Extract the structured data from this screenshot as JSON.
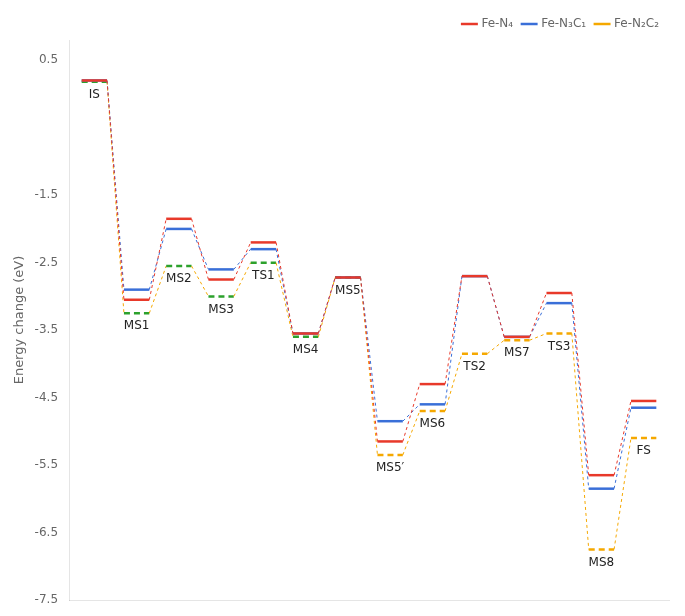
{
  "chart_data": {
    "type": "line",
    "categories": [
      "IS",
      "MS1",
      "MS2",
      "MS3",
      "TS1",
      "MS4",
      "MS5",
      "MS5′",
      "MS6",
      "TS2",
      "MS7",
      "TS3",
      "MS8",
      "FS"
    ],
    "series": [
      {
        "name": "Fe-N₄",
        "color": "#e8392a",
        "line_style": "solid",
        "values": [
          0.2,
          -3.05,
          -1.85,
          -2.75,
          -2.2,
          -3.55,
          -2.72,
          -5.15,
          -4.3,
          -2.7,
          -3.6,
          -2.95,
          -5.65,
          -4.55
        ]
      },
      {
        "name": "Fe-N₃C₁",
        "color": "#3a6fd8",
        "line_style": "solid",
        "values": [
          0.2,
          -2.9,
          -2.0,
          -2.6,
          -2.3,
          -3.55,
          -2.72,
          -4.85,
          -4.6,
          -2.7,
          -3.6,
          -3.1,
          -5.85,
          -4.65
        ]
      },
      {
        "name": "Fe-N₂C₂",
        "color": "#f5a800",
        "line_style": "dashed",
        "colors": [
          "#2ca12c",
          "#2ca12c",
          "#2ca12c",
          "#2ca12c",
          "#2ca12c",
          "#2ca12c",
          "#2ca12c",
          "#f5a800",
          "#f5a800",
          "#f5a800",
          "#f5a800",
          "#f5a800",
          "#f5a800",
          "#f5a800"
        ],
        "values": [
          0.18,
          -3.25,
          -2.55,
          -3.0,
          -2.5,
          -3.6,
          -2.72,
          -5.35,
          -4.7,
          -3.85,
          -3.65,
          -3.55,
          -6.75,
          -5.1
        ]
      }
    ],
    "ylabel": "Energy change (eV)",
    "ylim": [
      -7.5,
      0.8
    ],
    "yticks": [
      0.5,
      {
        "value": -0.5,
        "label": ""
      },
      -1.5,
      -2.5,
      -3.5,
      -4.5,
      -5.5,
      -6.5,
      -7.5
    ],
    "grid": false,
    "legend": "upper right",
    "tick_labels": "y"
  }
}
